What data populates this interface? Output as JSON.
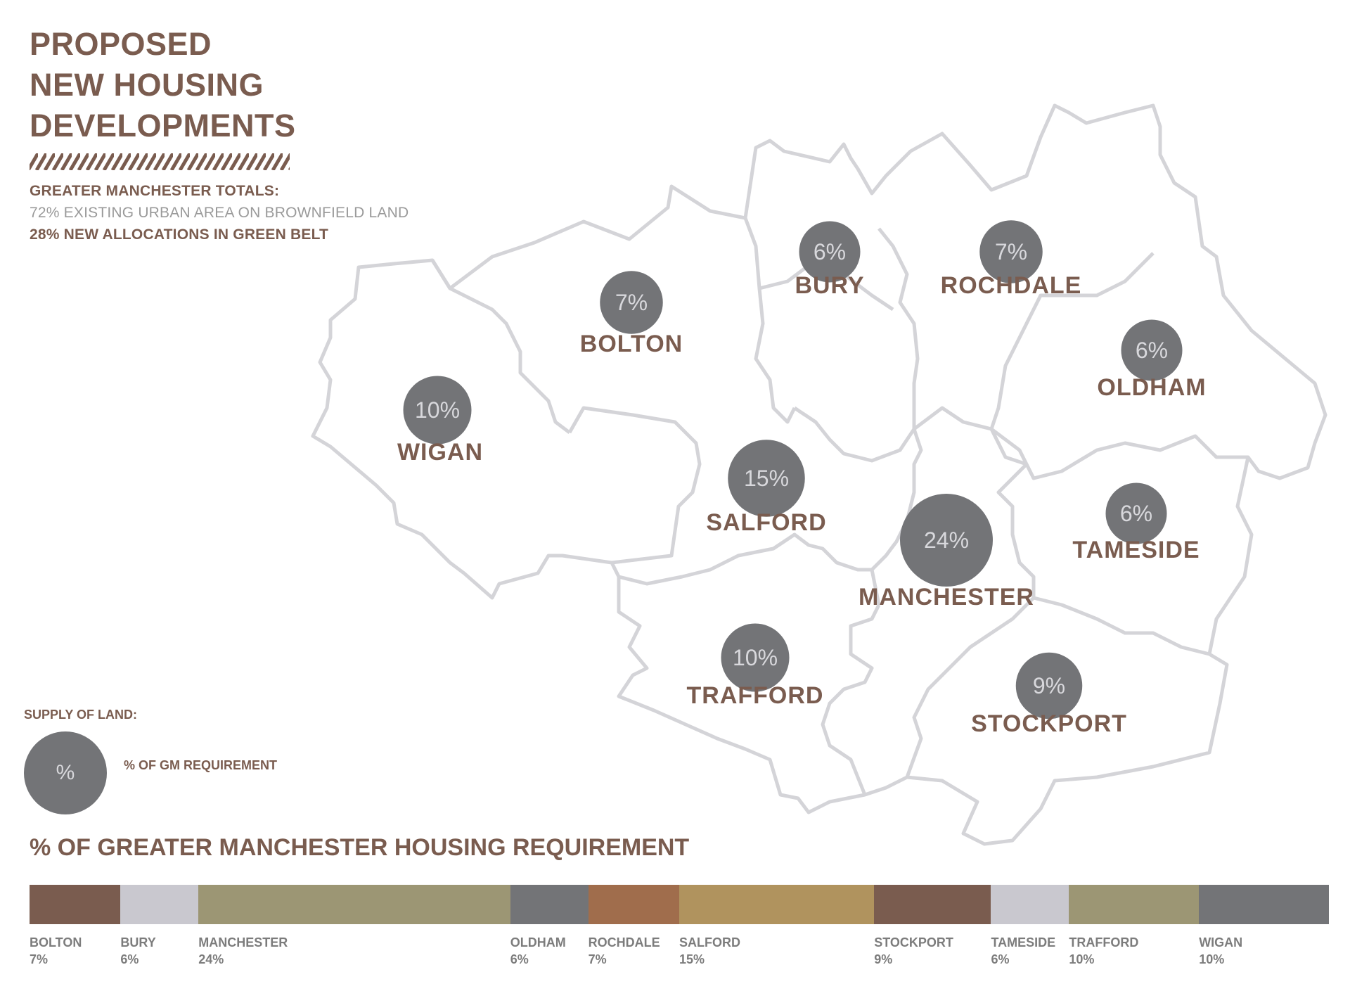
{
  "title": {
    "line1": "PROPOSED",
    "line2": "NEW HOUSING",
    "line3": "DEVELOPMENTS"
  },
  "totals": {
    "heading": "GREATER MANCHESTER TOTALS:",
    "brownfield": "72% EXISTING URBAN AREA ON BROWNFIELD LAND",
    "greenbelt": "28% NEW ALLOCATIONS IN GREEN BELT"
  },
  "map": {
    "boroughs": [
      {
        "name": "BOLTON",
        "value": "7%"
      },
      {
        "name": "BURY",
        "value": "6%"
      },
      {
        "name": "ROCHDALE",
        "value": "7%"
      },
      {
        "name": "OLDHAM",
        "value": "6%"
      },
      {
        "name": "WIGAN",
        "value": "10%"
      },
      {
        "name": "SALFORD",
        "value": "15%"
      },
      {
        "name": "MANCHESTER",
        "value": "24%"
      },
      {
        "name": "TAMESIDE",
        "value": "6%"
      },
      {
        "name": "TRAFFORD",
        "value": "10%"
      },
      {
        "name": "STOCKPORT",
        "value": "9%"
      }
    ]
  },
  "legend": {
    "title": "SUPPLY OF LAND:",
    "symbol": "%",
    "description": "% OF GM REQUIREMENT"
  },
  "bar_chart": {
    "title": "% OF GREATER MANCHESTER HOUSING REQUIREMENT"
  },
  "chart_data": {
    "type": "bar",
    "orientation": "stacked-horizontal",
    "title": "% OF GREATER MANCHESTER HOUSING REQUIREMENT",
    "categories": [
      "BOLTON",
      "BURY",
      "MANCHESTER",
      "OLDHAM",
      "ROCHDALE",
      "SALFORD",
      "STOCKPORT",
      "TAMESIDE",
      "TRAFFORD",
      "WIGAN"
    ],
    "values": [
      7,
      6,
      24,
      6,
      7,
      15,
      9,
      6,
      10,
      10
    ],
    "value_labels": [
      "7%",
      "6%",
      "24%",
      "6%",
      "7%",
      "15%",
      "9%",
      "6%",
      "10%",
      "10%"
    ],
    "colors": [
      "#7a5c4f",
      "#c9c8cf",
      "#9c9674",
      "#737477",
      "#a06d4c",
      "#b0935e",
      "#7a5c4f",
      "#c9c8cf",
      "#9c9674",
      "#737477"
    ]
  },
  "colors": {
    "brand_brown": "#7a5c4f",
    "circle_grey": "#737477",
    "circle_text": "#d8d8dc",
    "border_grey": "#d4d4d8"
  }
}
